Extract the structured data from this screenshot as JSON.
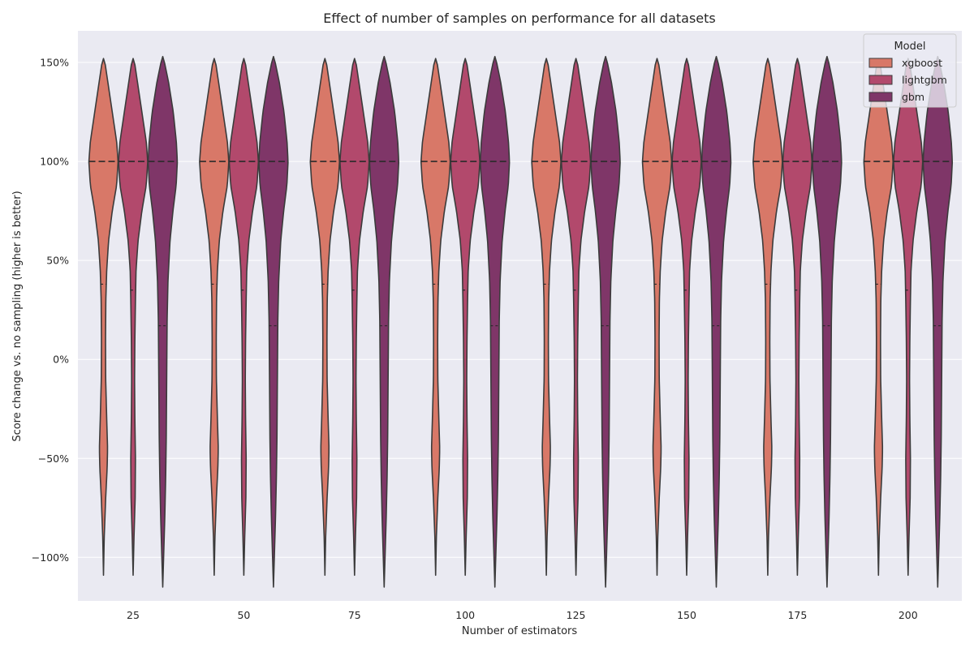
{
  "chart_data": {
    "type": "violin",
    "title": "Effect of number of samples on performance for all datasets",
    "xlabel": "Number of estimators",
    "ylabel": "Score change vs. no sampling (higher is better)",
    "categories": [
      "25",
      "50",
      "75",
      "100",
      "125",
      "150",
      "175",
      "200"
    ],
    "ylim": [
      -1.22,
      1.66
    ],
    "yticks": [
      -1.0,
      -0.5,
      0.0,
      0.5,
      1.0,
      1.5
    ],
    "ytick_labels": [
      "−100%",
      "−50%",
      "0%",
      "50%",
      "100%",
      "150%"
    ],
    "grid": true,
    "inner": "quartile",
    "legend": {
      "title": "Model",
      "placement": "top-right"
    },
    "series": [
      {
        "name": "xgboost",
        "color": "#d87868",
        "min": -1.09,
        "max": 1.52,
        "q1": 0.38,
        "median": 1.0,
        "q3": 1.0,
        "profile": [
          [
            -1.09,
            0.0
          ],
          [
            -0.9,
            0.05
          ],
          [
            -0.7,
            0.15
          ],
          [
            -0.55,
            0.25
          ],
          [
            -0.45,
            0.28
          ],
          [
            -0.3,
            0.22
          ],
          [
            -0.1,
            0.15
          ],
          [
            0.1,
            0.14
          ],
          [
            0.3,
            0.16
          ],
          [
            0.45,
            0.22
          ],
          [
            0.6,
            0.35
          ],
          [
            0.75,
            0.6
          ],
          [
            0.88,
            0.9
          ],
          [
            1.0,
            1.0
          ],
          [
            1.1,
            0.9
          ],
          [
            1.25,
            0.6
          ],
          [
            1.4,
            0.3
          ],
          [
            1.5,
            0.1
          ],
          [
            1.52,
            0.0
          ]
        ]
      },
      {
        "name": "lightgbm",
        "color": "#b2496c",
        "min": -1.09,
        "max": 1.52,
        "q1": 0.35,
        "median": 1.0,
        "q3": 1.0,
        "profile": [
          [
            -1.09,
            0.0
          ],
          [
            -0.9,
            0.06
          ],
          [
            -0.7,
            0.14
          ],
          [
            -0.5,
            0.16
          ],
          [
            -0.3,
            0.12
          ],
          [
            -0.1,
            0.1
          ],
          [
            0.1,
            0.12
          ],
          [
            0.3,
            0.16
          ],
          [
            0.45,
            0.2
          ],
          [
            0.6,
            0.34
          ],
          [
            0.75,
            0.6
          ],
          [
            0.88,
            0.9
          ],
          [
            1.0,
            1.0
          ],
          [
            1.1,
            0.9
          ],
          [
            1.25,
            0.6
          ],
          [
            1.4,
            0.3
          ],
          [
            1.5,
            0.1
          ],
          [
            1.52,
            0.0
          ]
        ]
      },
      {
        "name": "gbm",
        "color": "#7f3668",
        "min": -1.15,
        "max": 1.53,
        "q1": 0.17,
        "median": 1.0,
        "q3": 1.0,
        "profile": [
          [
            -1.15,
            0.0
          ],
          [
            -1.0,
            0.06
          ],
          [
            -0.8,
            0.14
          ],
          [
            -0.6,
            0.2
          ],
          [
            -0.4,
            0.24
          ],
          [
            -0.2,
            0.26
          ],
          [
            0.0,
            0.28
          ],
          [
            0.2,
            0.3
          ],
          [
            0.4,
            0.36
          ],
          [
            0.6,
            0.5
          ],
          [
            0.75,
            0.7
          ],
          [
            0.88,
            0.92
          ],
          [
            1.0,
            1.0
          ],
          [
            1.1,
            0.93
          ],
          [
            1.25,
            0.72
          ],
          [
            1.4,
            0.4
          ],
          [
            1.5,
            0.12
          ],
          [
            1.53,
            0.0
          ]
        ]
      }
    ]
  }
}
